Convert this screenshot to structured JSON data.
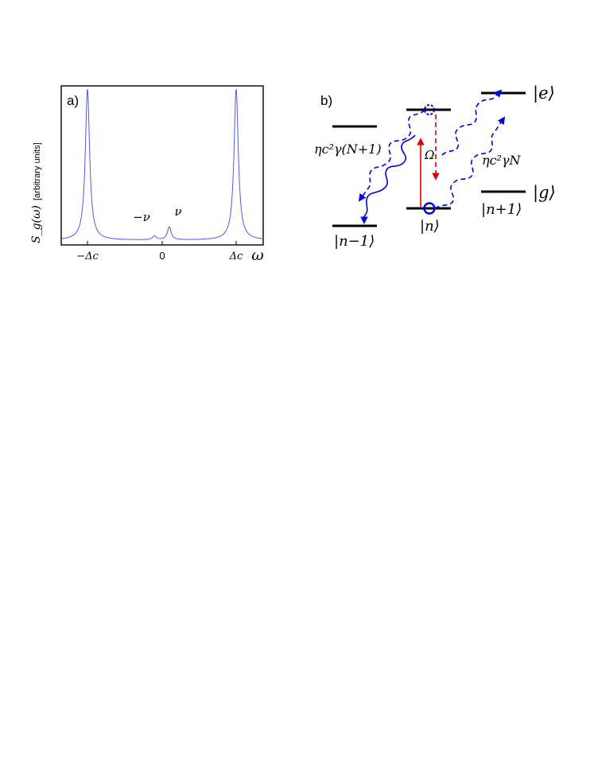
{
  "panel_a": {
    "label": "a)",
    "ylabel_symbol": "S_g(ω)",
    "ylabel_text": "[arbitrary units]",
    "xlabel": "ω",
    "ticks": [
      "−Δc",
      "0",
      "Δc"
    ],
    "annotations": [
      "−ν",
      "ν"
    ]
  },
  "chart_data": {
    "type": "line",
    "title": "",
    "xlabel": "ω",
    "ylabel": "S_g(ω) [arbitrary units]",
    "x_ticks": [
      "−Δc",
      "0",
      "Δc"
    ],
    "series": [
      {
        "peaks": [
          {
            "label": "−Δc",
            "x": -1.0,
            "height": 1.0
          },
          {
            "label": "−ν",
            "x": -0.1,
            "height": 0.025
          },
          {
            "label": "ν",
            "x": 0.1,
            "height": 0.085
          },
          {
            "label": "Δc",
            "x": 1.0,
            "height": 1.0
          }
        ]
      }
    ],
    "xlim": [
      -1.3,
      1.3
    ],
    "ylim": [
      0,
      1.05
    ],
    "grid": false,
    "color": "#5555ee"
  },
  "panel_b": {
    "label": "b)",
    "states": {
      "excited": "|e⟩",
      "ground": "|g⟩",
      "n": "|n⟩",
      "n_minus_1": "|n−1⟩",
      "n_plus_1": "|n+1⟩"
    },
    "rates": {
      "left": "ηc²γ(N+1)",
      "right": "ηc²γN"
    },
    "drive": "Ω",
    "colors": {
      "wavy": "#0000dd",
      "drive": "#dd0000",
      "level": "#000000"
    }
  }
}
